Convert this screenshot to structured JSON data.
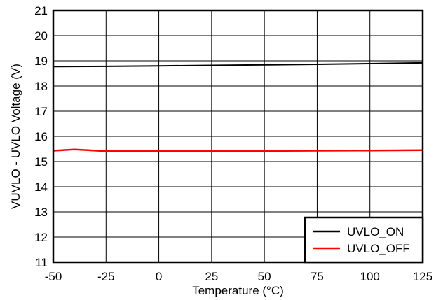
{
  "chart_data": {
    "type": "line",
    "title": "",
    "xlabel": "Temperature (°C)",
    "ylabel": "VUVLO - UVLO Voltage (V)",
    "xlim": [
      -50,
      125
    ],
    "ylim": [
      11,
      21
    ],
    "xticks": [
      -50,
      -25,
      0,
      25,
      50,
      75,
      100,
      125
    ],
    "yticks": [
      11,
      12,
      13,
      14,
      15,
      16,
      17,
      18,
      19,
      20,
      21
    ],
    "xtick_labels": [
      "-50",
      "-25",
      "0",
      "25",
      "50",
      "75",
      "100",
      "125"
    ],
    "ytick_labels": [
      "11",
      "12",
      "13",
      "14",
      "15",
      "16",
      "17",
      "18",
      "19",
      "20",
      "21"
    ],
    "grid": true,
    "legend_position": "bottom-right",
    "series": [
      {
        "name": "UVLO_ON",
        "color": "#000000",
        "x": [
          -50,
          -25,
          0,
          25,
          50,
          75,
          100,
          125
        ],
        "y": [
          18.77,
          18.78,
          18.8,
          18.82,
          18.84,
          18.86,
          18.89,
          18.92
        ]
      },
      {
        "name": "UVLO_OFF",
        "color": "#ff0000",
        "x": [
          -50,
          -40,
          -25,
          0,
          25,
          50,
          75,
          100,
          125
        ],
        "y": [
          15.43,
          15.48,
          15.41,
          15.41,
          15.42,
          15.42,
          15.43,
          15.44,
          15.45
        ]
      }
    ]
  }
}
